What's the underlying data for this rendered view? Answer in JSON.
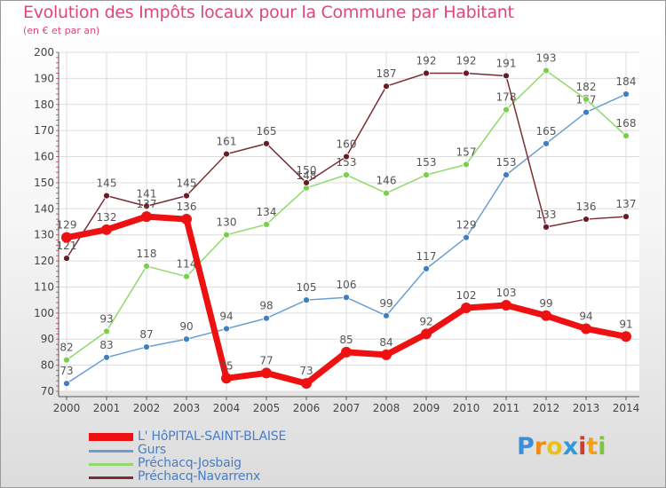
{
  "chart_data": {
    "type": "line",
    "title": "Evolution des Impôts locaux pour la Commune par Habitant",
    "subtitle": "(en € et par an)",
    "categories": [
      "2000",
      "2001",
      "2002",
      "2003",
      "2004",
      "2005",
      "2006",
      "2007",
      "2008",
      "2009",
      "2010",
      "2011",
      "2012",
      "2013",
      "2014"
    ],
    "y_ticks": [
      "70",
      "80",
      "90",
      "100",
      "110",
      "120",
      "130",
      "140",
      "150",
      "160",
      "170",
      "180",
      "190",
      "200"
    ],
    "ylim": [
      70,
      200
    ],
    "grid": true,
    "legend_position": "bottom-left",
    "series": [
      {
        "name": "Gurs",
        "color": "#6b9fd1",
        "marker_color": "#3f7fc0",
        "label_color": "#555555",
        "values": [
          73,
          83,
          87,
          90,
          94,
          98,
          105,
          106,
          99,
          117,
          129,
          153,
          165,
          177,
          184
        ]
      },
      {
        "name": "Préchacq-Josbaig",
        "color": "#8fda6a",
        "marker_color": "#79cf48",
        "label_color": "#555555",
        "values": [
          82,
          93,
          118,
          114,
          130,
          134,
          148,
          153,
          146,
          153,
          157,
          178,
          193,
          182,
          168
        ]
      },
      {
        "name": "Préchacq-Navarrenx",
        "color": "#7a2e33",
        "marker_color": "#651e24",
        "label_color": "#555555",
        "values": [
          121,
          145,
          141,
          145,
          161,
          165,
          150,
          160,
          187,
          192,
          192,
          191,
          133,
          136,
          137
        ]
      },
      {
        "name": "L' HôPITAL-SAINT-BLAISE",
        "color": "#ee1111",
        "marker_color": "#ee1111",
        "label_color": "#555555",
        "values": [
          129,
          132,
          137,
          136,
          75,
          77,
          73,
          85,
          84,
          92,
          102,
          103,
          99,
          94,
          91
        ]
      }
    ],
    "legend_order": [
      "L' HôPITAL-SAINT-BLAISE",
      "Gurs",
      "Préchacq-Josbaig",
      "Préchacq-Navarrenx"
    ]
  },
  "brand": {
    "letters": [
      "P",
      "r",
      "o",
      "x",
      "i",
      "t",
      "i"
    ],
    "colors": [
      "#3b8fd6",
      "#f08a1c",
      "#e8c21a",
      "#2e9ad8",
      "#d13b2e",
      "#f2a218",
      "#7cc442"
    ]
  }
}
